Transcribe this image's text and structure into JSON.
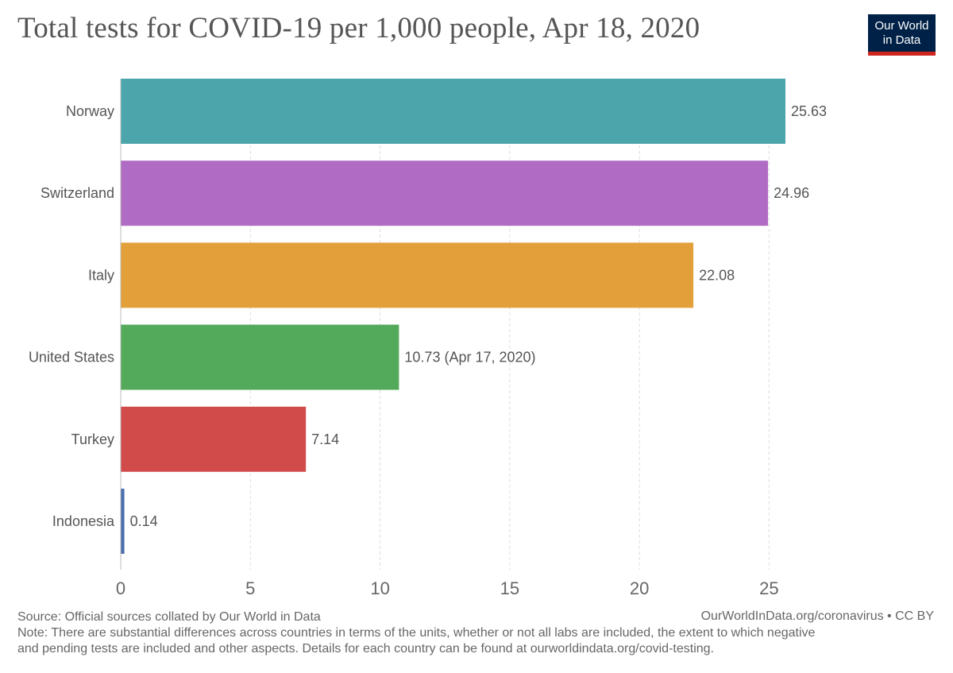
{
  "title": "Total tests for COVID-19 per 1,000 people, Apr 18, 2020",
  "logo": {
    "line1": "Our World",
    "line2": "in Data",
    "bg_color": "#002147",
    "accent_color": "#ce261e"
  },
  "footer": {
    "source": "Source: Official sources collated by Our World in Data",
    "note_line1": "Note: There are substantial differences across countries in terms of the units, whether or not all labs are included, the extent to which negative",
    "note_line2": "and pending tests are included and other aspects. Details for each country can be found at ourworldindata.org/covid-testing.",
    "link": "OurWorldInData.org/coronavirus • CC BY"
  },
  "chart_data": {
    "type": "bar",
    "orientation": "horizontal",
    "categories": [
      "Norway",
      "Switzerland",
      "Italy",
      "United States",
      "Turkey",
      "Indonesia"
    ],
    "values": [
      25.63,
      24.96,
      22.08,
      10.73,
      7.14,
      0.14
    ],
    "value_labels": [
      "25.63",
      "24.96",
      "22.08",
      "10.73 (Apr 17, 2020)",
      "7.14",
      "0.14"
    ],
    "colors": [
      "#4ca5ab",
      "#b06cc4",
      "#e3a03a",
      "#53aa5b",
      "#d14b4b",
      "#4a6fae"
    ],
    "x_ticks": [
      0,
      5,
      10,
      15,
      20,
      25
    ],
    "xlim": [
      0,
      25.63
    ],
    "grid": "vertical dashed",
    "title": "Total tests for COVID-19 per 1,000 people, Apr 18, 2020",
    "xlabel": "",
    "ylabel": ""
  }
}
